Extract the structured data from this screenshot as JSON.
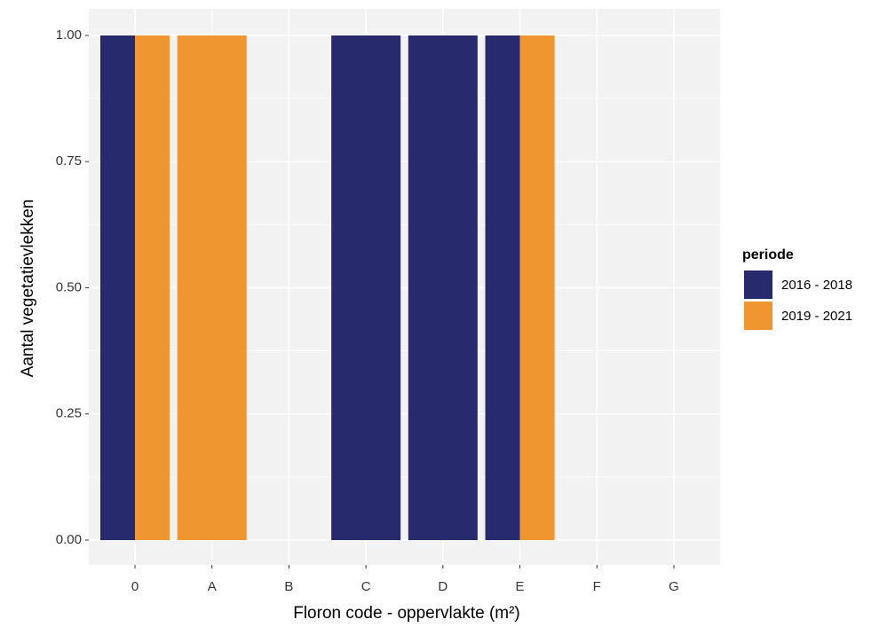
{
  "chart_data": {
    "type": "bar",
    "x_label": "Floron code - oppervlakte (m²)",
    "y_label": "Aantal vegetatievlekken",
    "categories": [
      "0",
      "A",
      "B",
      "C",
      "D",
      "E",
      "F",
      "G"
    ],
    "series": [
      {
        "name": "2016 - 2018",
        "color": "#282a6e",
        "values": [
          1,
          null,
          null,
          1,
          1,
          1,
          null,
          null
        ]
      },
      {
        "name": "2019 - 2021",
        "color": "#ef9630",
        "values": [
          1,
          1,
          null,
          null,
          null,
          1,
          null,
          null
        ]
      }
    ],
    "legend_title": "periode",
    "ylim": [
      0,
      1
    ],
    "yticks": [
      {
        "value": 0,
        "label": "0.00"
      },
      {
        "value": 0.25,
        "label": "0.25"
      },
      {
        "value": 0.5,
        "label": "0.50"
      },
      {
        "value": 0.75,
        "label": "0.75"
      },
      {
        "value": 1,
        "label": "1.00"
      }
    ],
    "grid": true
  }
}
